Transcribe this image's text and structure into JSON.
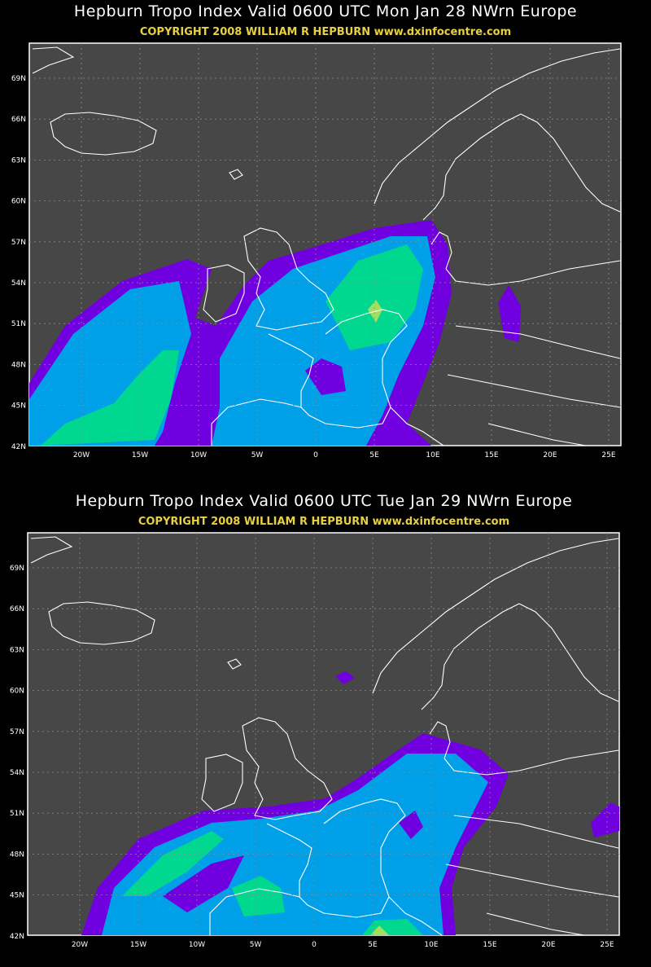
{
  "panels": [
    {
      "title": "Hepburn Tropo Index Valid 0600 UTC Mon Jan 28 NWrn Europe",
      "copyright": "COPYRIGHT 2008   WILLIAM R HEPBURN   www.dxinfocentre.com",
      "lat_labels": [
        "69N",
        "66N",
        "63N",
        "60N",
        "57N",
        "54N",
        "51N",
        "48N",
        "45N",
        "42N"
      ],
      "lon_labels": [
        "20W",
        "15W",
        "10W",
        "5W",
        "0",
        "5E",
        "10E",
        "15E",
        "20E",
        "25E"
      ]
    },
    {
      "title": "Hepburn Tropo Index Valid 0600 UTC Tue Jan 29 NWrn Europe",
      "copyright": "COPYRIGHT 2008   WILLIAM R HEPBURN   www.dxinfocentre.com",
      "lat_labels": [
        "69N",
        "66N",
        "63N",
        "60N",
        "57N",
        "54N",
        "51N",
        "48N",
        "45N",
        "42N"
      ],
      "lon_labels": [
        "20W",
        "15W",
        "10W",
        "5W",
        "0",
        "5E",
        "10E",
        "15E",
        "20E",
        "25E"
      ]
    }
  ]
}
